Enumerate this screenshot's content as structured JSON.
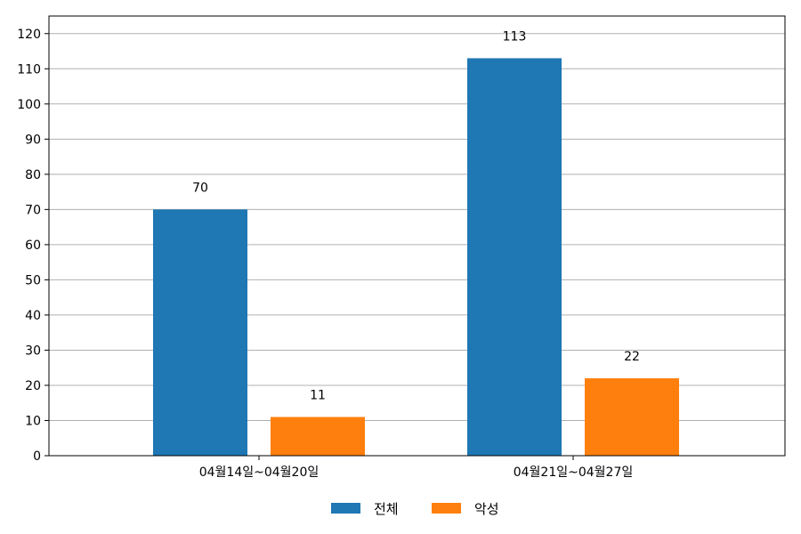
{
  "chart_data": {
    "type": "bar",
    "categories": [
      "04월14일~04월20일",
      "04월21일~04월27일"
    ],
    "series": [
      {
        "name": "전체",
        "values": [
          70,
          113
        ],
        "color": "#1f77b4"
      },
      {
        "name": "악성",
        "values": [
          11,
          22
        ],
        "color": "#ff7f0e"
      }
    ],
    "ylim": [
      0,
      125
    ],
    "yticks": [
      0,
      10,
      20,
      30,
      40,
      50,
      60,
      70,
      80,
      90,
      100,
      110,
      120
    ],
    "grid": true,
    "legend_position": "bottom-center",
    "data_labels": true
  }
}
